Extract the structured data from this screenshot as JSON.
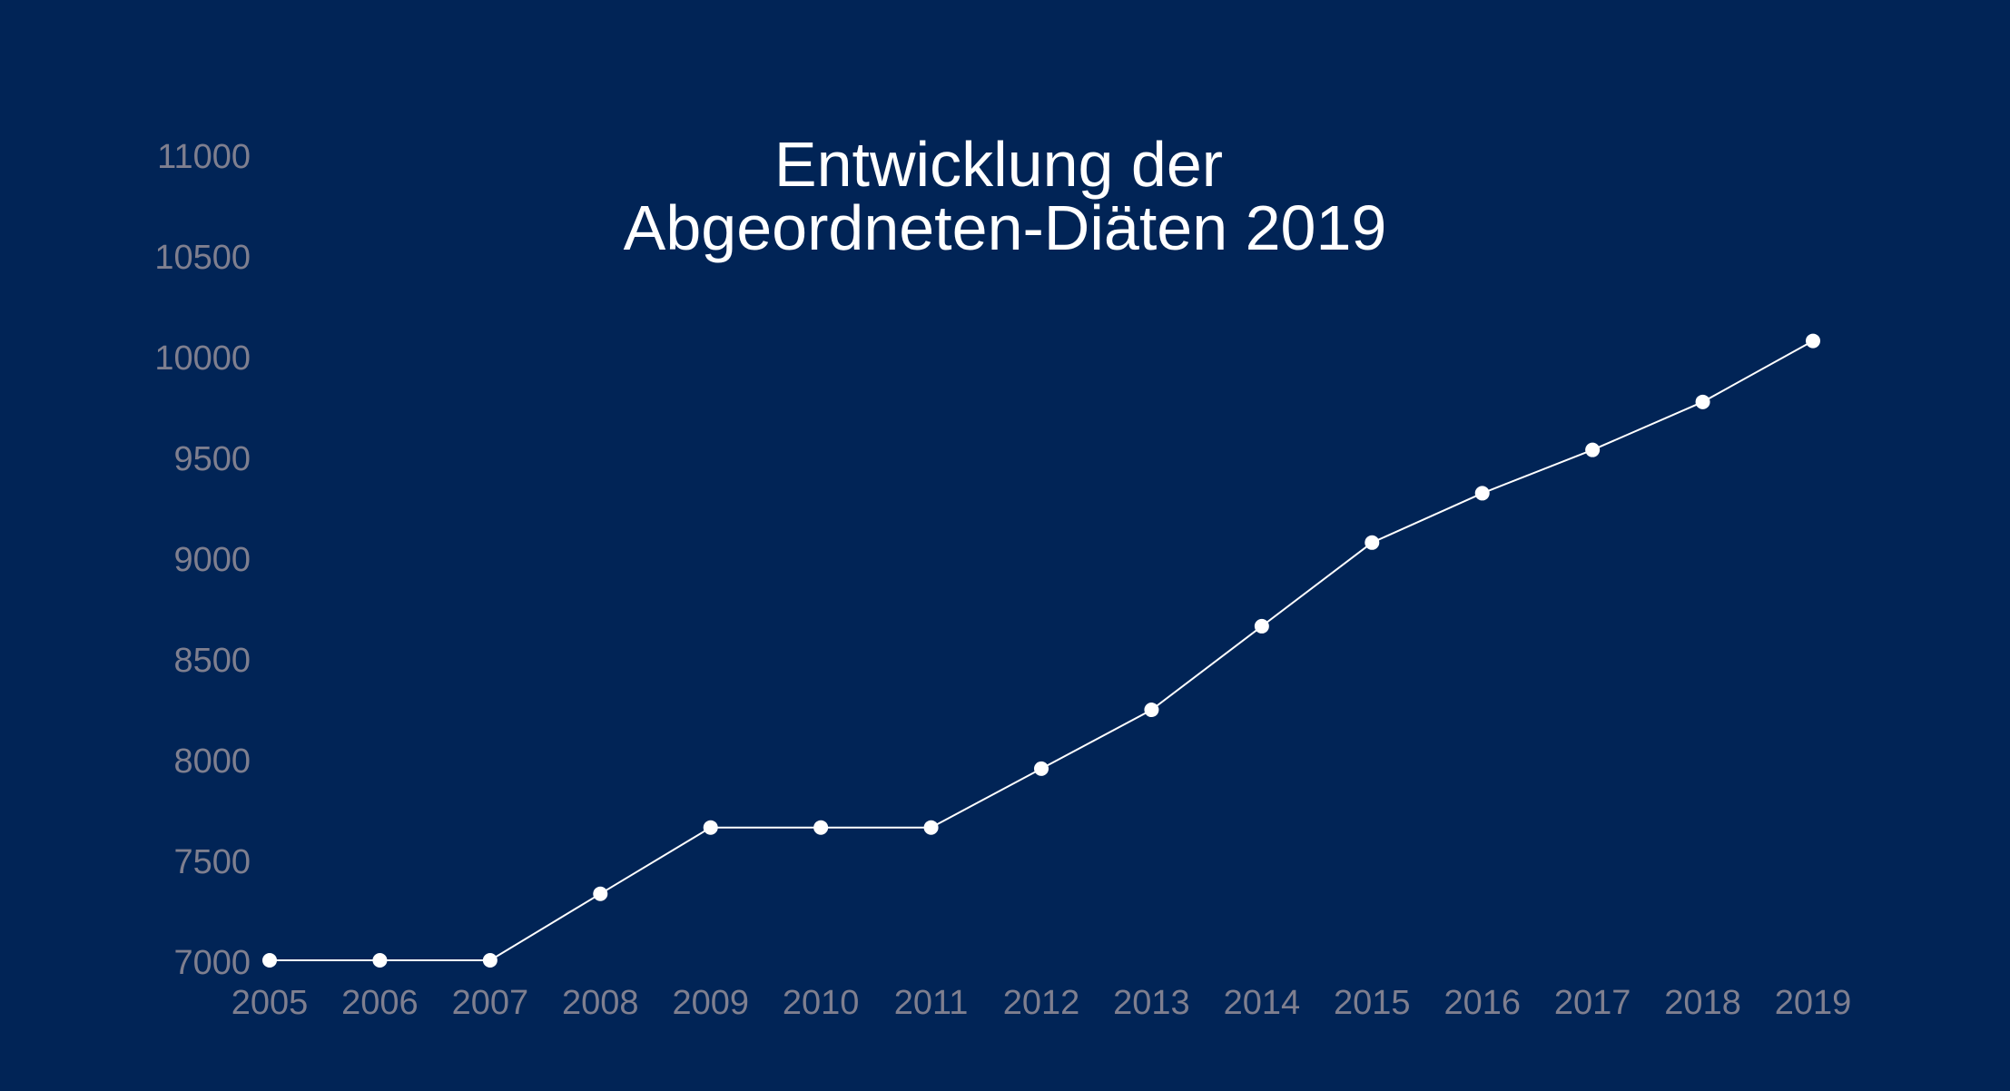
{
  "chart_data": {
    "type": "line",
    "title": [
      "Entwicklung der",
      "Abgeordneten-Diäten 2019"
    ],
    "xlabel": "",
    "ylabel": "",
    "categories": [
      "2005",
      "2006",
      "2007",
      "2008",
      "2009",
      "2010",
      "2011",
      "2012",
      "2013",
      "2014",
      "2015",
      "2016",
      "2017",
      "2018",
      "2019"
    ],
    "yticks": [
      "7000",
      "7500",
      "8000",
      "8500",
      "9000",
      "9500",
      "10000",
      "10500",
      "11000"
    ],
    "ylim": [
      7000,
      11000
    ],
    "grid": false,
    "legend": "none",
    "series": [
      {
        "values": [
          7009,
          7009,
          7009,
          7339,
          7668,
          7668,
          7668,
          7960,
          8252,
          8667,
          9082,
          9327,
          9542,
          9780,
          10083
        ]
      }
    ],
    "colors": {
      "background": "#012456",
      "line": "#ffffff",
      "point": "#ffffff",
      "tick_text": "#7f7f8f",
      "title_text": "#ffffff"
    }
  }
}
